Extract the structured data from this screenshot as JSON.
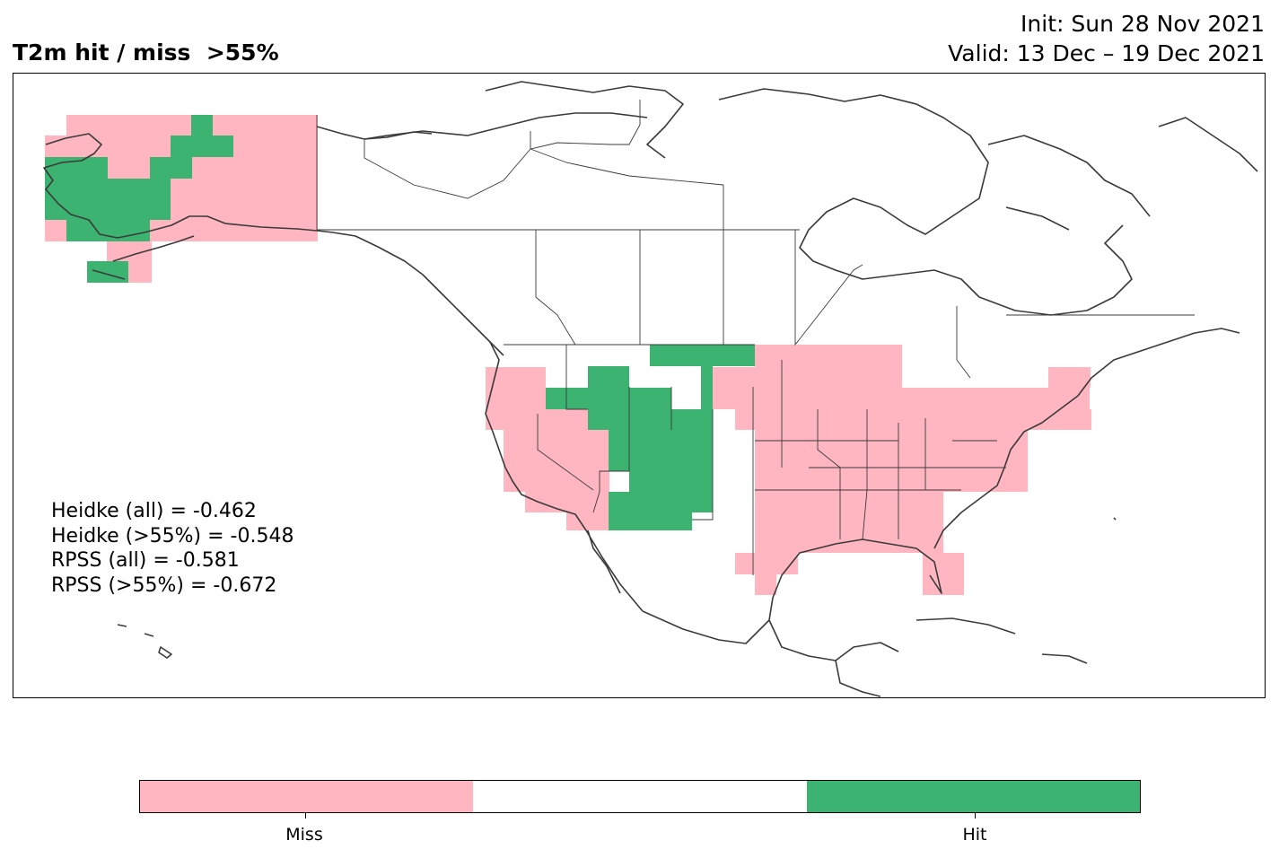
{
  "header": {
    "title": "T2m hit / miss  >55%",
    "init": "Init: Sun 28 Nov 2021",
    "valid": "Valid: 13 Dec – 19 Dec 2021"
  },
  "stats": [
    "Heidke (all) = -0.462",
    "Heidke (>55%) = -0.548",
    "RPSS (all) = -0.581",
    "RPSS (>55%) = -0.672"
  ],
  "legend": {
    "miss_label": "Miss",
    "hit_label": "Hit",
    "colors": {
      "miss": "#ffb6c1",
      "neutral": "#ffffff",
      "hit": "#3cb371"
    }
  },
  "map_cells": {
    "alaska": {
      "hit": [
        "rgb(37,44) rgb(36,43)",
        "hit-row-2"
      ]
    }
  }
}
